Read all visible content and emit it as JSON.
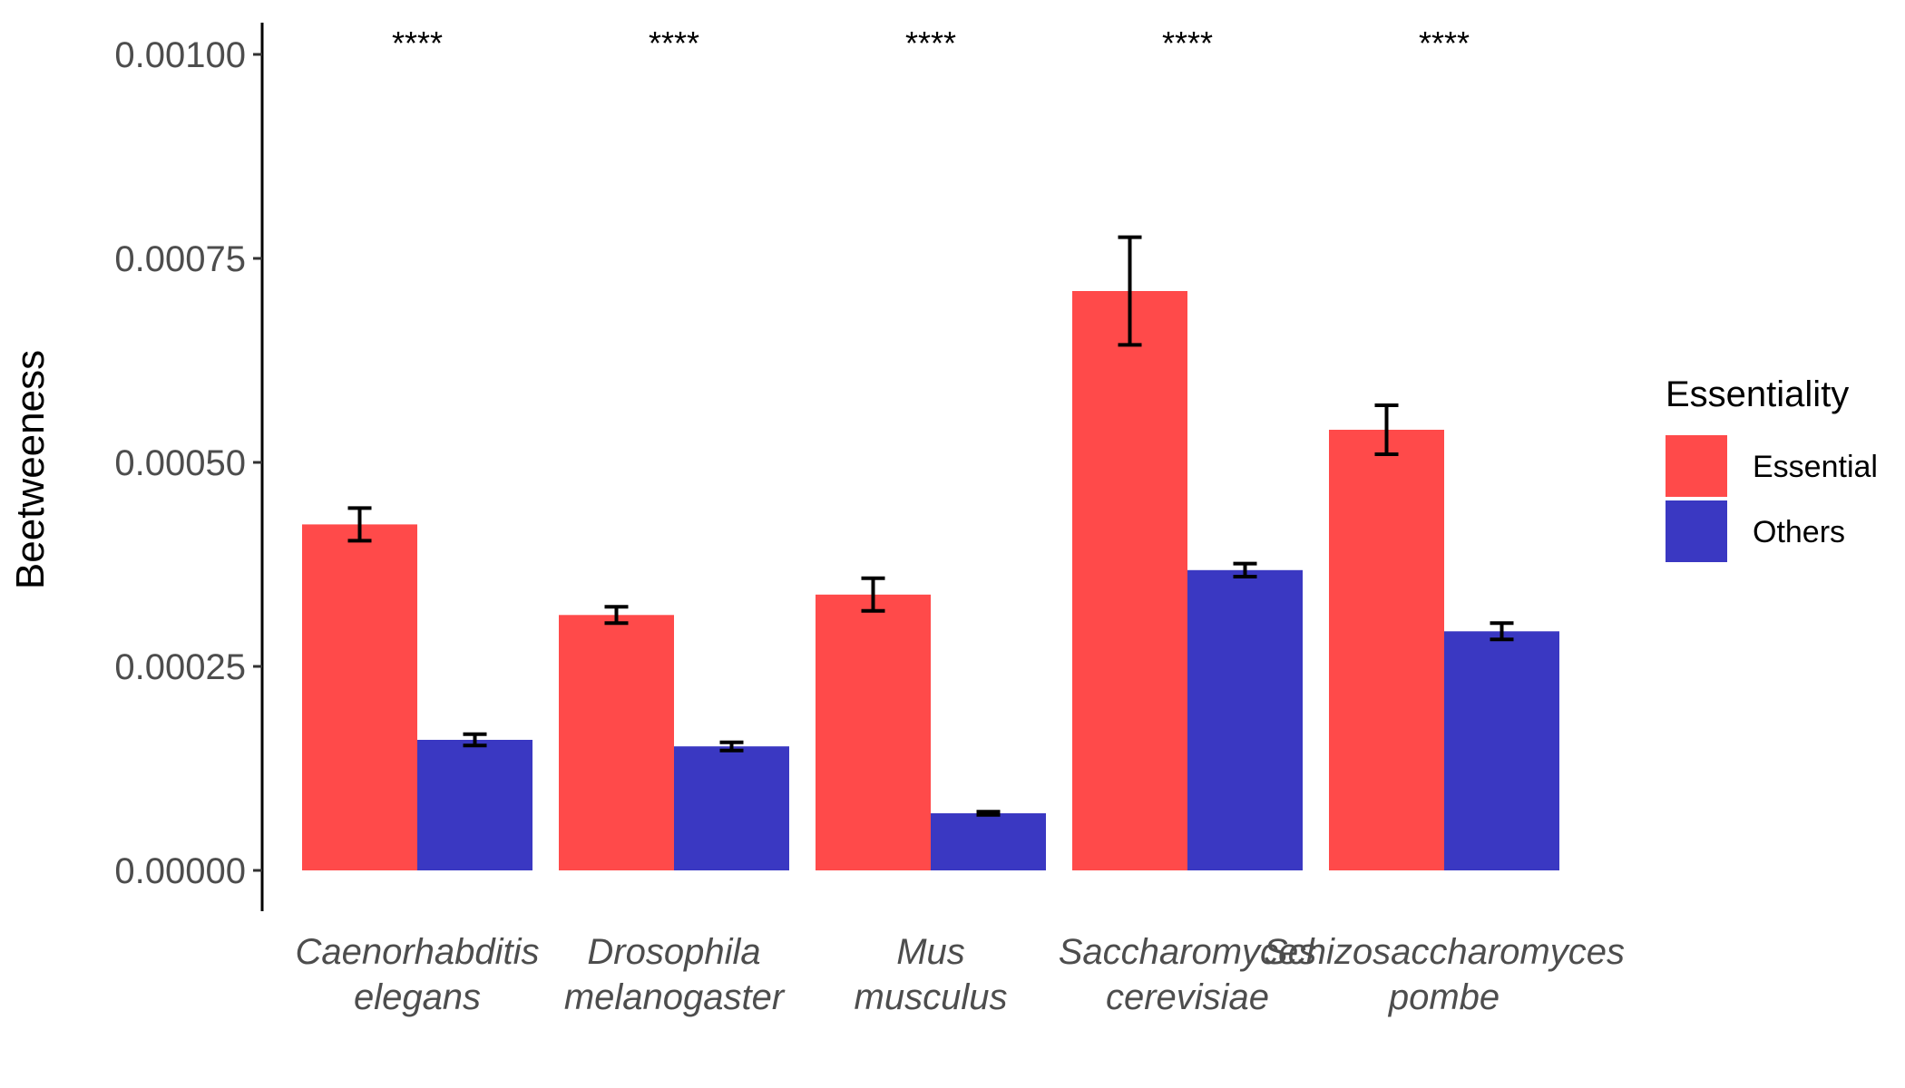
{
  "chart_data": {
    "type": "bar",
    "ylabel": "Beetweeness",
    "xlabel": "",
    "ylim": [
      0,
      0.00105
    ],
    "yticks": [
      "0.00000",
      "0.00025",
      "0.00050",
      "0.00075",
      "0.00100"
    ],
    "ytick_values": [
      0,
      0.00025,
      0.0005,
      0.00075,
      0.001
    ],
    "categories": [
      [
        "Caenorhabditis",
        "elegans"
      ],
      [
        "Drosophila",
        "melanogaster"
      ],
      [
        "Mus",
        "musculus"
      ],
      [
        "Saccharomyces",
        "cerevisiae"
      ],
      [
        "Schizosaccharomyces",
        "pombe"
      ]
    ],
    "significance": [
      "****",
      "****",
      "****",
      "****",
      "****"
    ],
    "legend": {
      "title": "Essentiality",
      "placement": "right"
    },
    "series": [
      {
        "name": "Essential",
        "color": "#ff4a4a",
        "values": [
          0.000424,
          0.000313,
          0.000338,
          0.00071,
          0.00054
        ],
        "err": [
          2e-05,
          1e-05,
          2e-05,
          6.6e-05,
          3e-05
        ]
      },
      {
        "name": "Others",
        "color": "#3a38c2",
        "values": [
          0.00016,
          0.000152,
          7e-05,
          0.000368,
          0.000293
        ],
        "err": [
          7e-06,
          5e-06,
          2e-06,
          8e-06,
          1e-05
        ]
      }
    ]
  }
}
